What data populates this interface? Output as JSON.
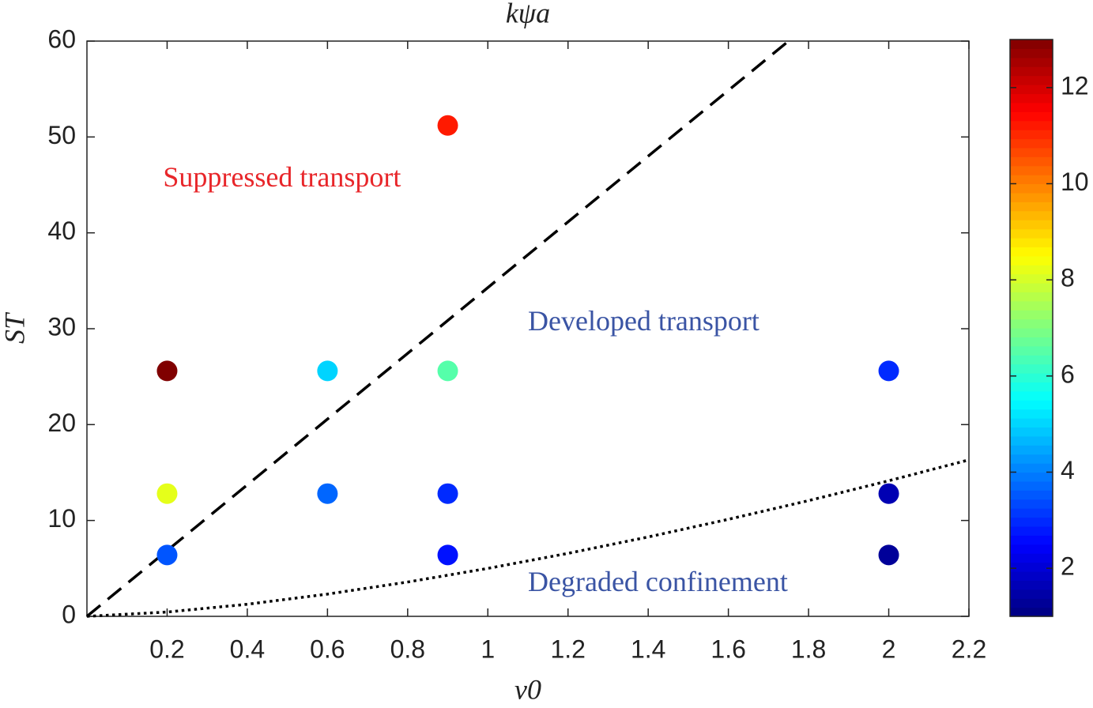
{
  "chart_data": {
    "type": "scatter",
    "title": "kψa",
    "xlabel": "ν0",
    "ylabel": "ST",
    "xlim": [
      0,
      2.2
    ],
    "xticks": [
      0.2,
      0.4,
      0.6,
      0.8,
      1,
      1.2,
      1.4,
      1.6,
      1.8,
      2,
      2.2
    ],
    "ylim": [
      0,
      60
    ],
    "yticks": [
      0,
      10,
      20,
      30,
      40,
      50,
      60
    ],
    "x": [
      0.2,
      0.2,
      0.2,
      0.6,
      0.6,
      0.9,
      0.9,
      0.9,
      0.9,
      2,
      2,
      2
    ],
    "values": [
      25.6,
      12.8,
      6.4,
      25.6,
      12.8,
      51.2,
      25.6,
      12.8,
      6.4,
      25.6,
      12.8,
      6.4
    ],
    "color_values": [
      13,
      8.2,
      3.5,
      5,
      3.7,
      11.2,
      6.5,
      3,
      2.7,
      3,
      1.6,
      1.3
    ],
    "colormap": "jet",
    "clim": [
      1,
      13
    ],
    "cticks": [
      2,
      4,
      6,
      8,
      10,
      12
    ],
    "lines": [
      {
        "style": "dashed",
        "x": [
          0,
          1.75
        ],
        "values": [
          0,
          60
        ]
      },
      {
        "style": "dotted",
        "x": [
          0,
          0.2,
          0.4,
          0.6,
          0.8,
          1,
          1.2,
          1.4,
          1.6,
          1.8,
          2,
          2.2
        ],
        "values": [
          0,
          0.45,
          1.26,
          2.32,
          3.58,
          5,
          6.57,
          8.28,
          10.12,
          12.07,
          14.14,
          16.32
        ]
      }
    ],
    "annotations": [
      {
        "text": "Suppressed transport",
        "x": 0.19,
        "y": 45.5,
        "color": "#e8262a"
      },
      {
        "text": "Developed transport",
        "x": 1.1,
        "y": 30.5,
        "color": "#3a54a4"
      },
      {
        "text": "Degraded confinement",
        "x": 1.1,
        "y": 3.3,
        "color": "#3a54a4"
      }
    ]
  }
}
